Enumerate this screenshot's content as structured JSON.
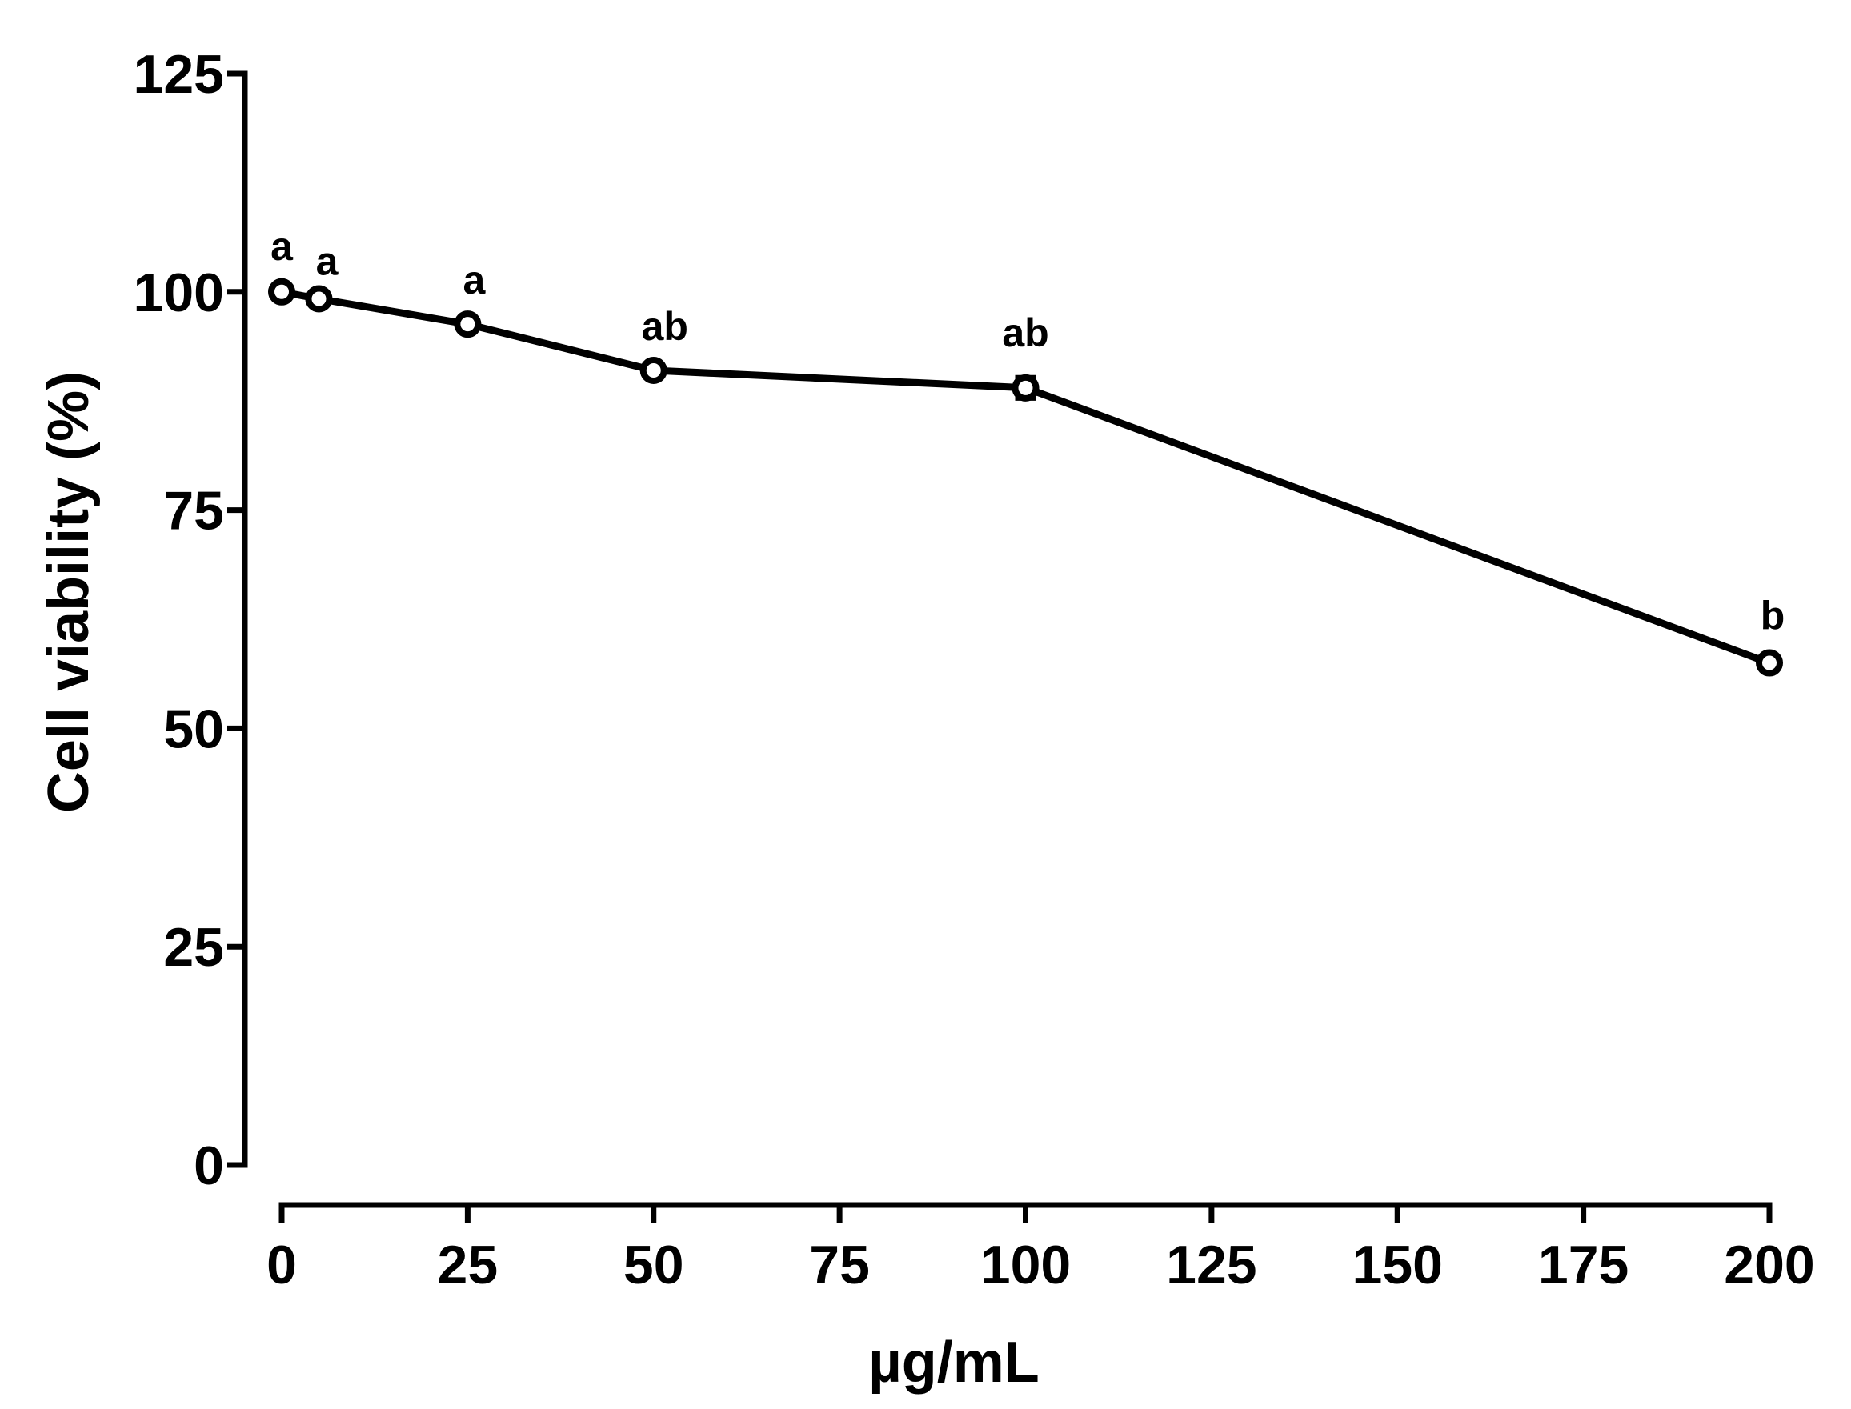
{
  "chart_data": {
    "type": "line",
    "title": "",
    "xlabel": "µg/mL",
    "ylabel": "Cell viability (%)",
    "xlim": [
      0,
      200
    ],
    "ylim": [
      0,
      125
    ],
    "x_ticks": [
      "0",
      "25",
      "50",
      "75",
      "100",
      "125",
      "150",
      "175",
      "200"
    ],
    "y_ticks": [
      "0",
      "25",
      "50",
      "75",
      "100",
      "125"
    ],
    "grid": false,
    "legend": "none",
    "series": [
      {
        "name": "Cell viability",
        "points": [
          {
            "x": 0,
            "y": 100,
            "err": 0.4,
            "label": "a"
          },
          {
            "x": 5,
            "y": 99.2,
            "err": 0.4,
            "label": "a"
          },
          {
            "x": 25,
            "y": 96.3,
            "err": 0.5,
            "label": "a"
          },
          {
            "x": 50,
            "y": 91,
            "err": 0.5,
            "label": "ab"
          },
          {
            "x": 100,
            "y": 89,
            "err": 1.2,
            "label": "ab"
          },
          {
            "x": 200,
            "y": 57.5,
            "err": 0.5,
            "label": "b"
          }
        ]
      }
    ]
  }
}
